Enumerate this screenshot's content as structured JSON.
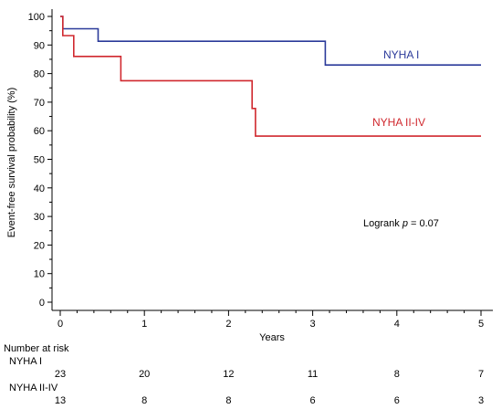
{
  "chart_data": {
    "type": "line",
    "title": "",
    "xlabel": "Years",
    "ylabel": "Event-free survival probability (%)",
    "xlim": [
      0,
      5
    ],
    "ylim": [
      0,
      100
    ],
    "x_ticks": [
      "0",
      "1",
      "2",
      "3",
      "4",
      "5"
    ],
    "y_ticks": [
      "0",
      "10",
      "20",
      "30",
      "40",
      "50",
      "60",
      "70",
      "80",
      "90",
      "100"
    ],
    "grid": false,
    "legend": "inline labels at right",
    "series": [
      {
        "name": "NYHA I",
        "color": "#2b3a9a",
        "step": true,
        "x": [
          0,
          0.03,
          0.45,
          3.15,
          5.0
        ],
        "y": [
          100,
          95.7,
          91.3,
          83.0,
          83.0
        ]
      },
      {
        "name": "NYHA II-IV",
        "color": "#d0282e",
        "step": true,
        "x": [
          0,
          0.03,
          0.16,
          0.72,
          2.28,
          2.32,
          5.0
        ],
        "y": [
          100,
          93.3,
          86.0,
          77.5,
          67.8,
          58.1,
          58.1
        ]
      }
    ],
    "annotation": {
      "prefix": "Logrank ",
      "italic": "p",
      "suffix": " = 0.07"
    }
  },
  "risk_table": {
    "title": "Number at risk",
    "groups": [
      {
        "name": "NYHA I",
        "counts": [
          "23",
          "20",
          "12",
          "11",
          "8",
          "7"
        ]
      },
      {
        "name": "NYHA II-IV",
        "counts": [
          "13",
          "8",
          "8",
          "6",
          "6",
          "3"
        ]
      }
    ]
  }
}
